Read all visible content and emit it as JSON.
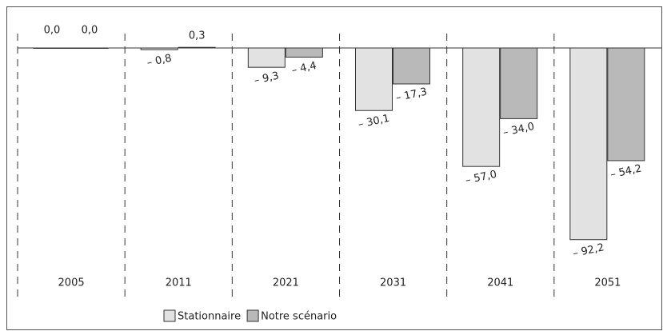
{
  "chart_data": {
    "type": "bar",
    "categories": [
      "2005",
      "2011",
      "2021",
      "2031",
      "2041",
      "2051"
    ],
    "series": [
      {
        "name": "Stationnaire",
        "color": "#e2e2e2",
        "values": [
          0.0,
          -0.8,
          -9.3,
          -30.1,
          -57.0,
          -92.2
        ],
        "value_labels": [
          "0,0",
          "– 0,8",
          "– 9,3",
          "– 30,1",
          "– 57,0",
          "– 92,2"
        ]
      },
      {
        "name": "Notre scénario",
        "color": "#b9b9b9",
        "values": [
          0.0,
          0.3,
          -4.4,
          -17.3,
          -34.0,
          -54.2
        ],
        "value_labels": [
          "0,0",
          "0,3",
          "– 4,4",
          "– 17,3",
          "– 34,0",
          "– 54,2"
        ]
      }
    ],
    "ylim": [
      -100,
      20
    ]
  }
}
